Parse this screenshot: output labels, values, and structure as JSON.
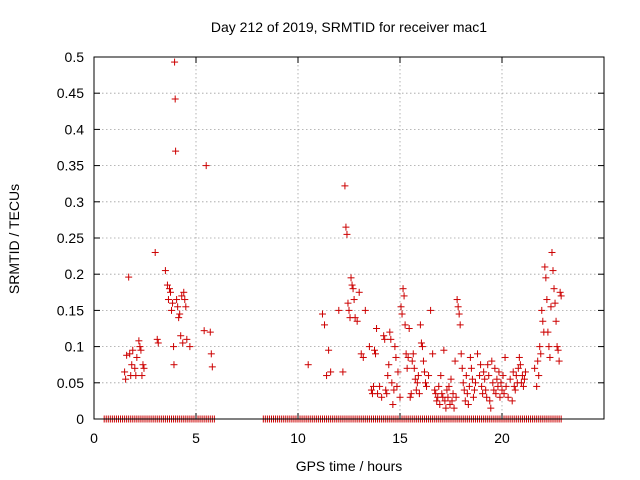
{
  "chart_data": {
    "type": "scatter",
    "title": "Day 212 of 2019, SRMTID for receiver mac1",
    "xlabel": "GPS time / hours",
    "ylabel": "SRMTID / TECUs",
    "xlim": [
      0,
      25
    ],
    "ylim": [
      0,
      0.5
    ],
    "xticks": [
      0,
      5,
      10,
      15,
      20
    ],
    "xtick_labels": [
      "0",
      "5",
      "10",
      "15",
      "20"
    ],
    "yticks": [
      0,
      0.05,
      0.1,
      0.15,
      0.2,
      0.25,
      0.3,
      0.35,
      0.4,
      0.45,
      0.5
    ],
    "ytick_labels": [
      "0",
      "0.05",
      "0.1",
      "0.15",
      "0.2",
      "0.25",
      "0.3",
      "0.35",
      "0.4",
      "0.45",
      "0.5"
    ],
    "grid": true,
    "marker": "+",
    "series": [
      {
        "name": "SRMTID",
        "color": "#cc0000",
        "points": [
          [
            1.5,
            0.065
          ],
          [
            1.55,
            0.055
          ],
          [
            1.6,
            0.088
          ],
          [
            1.7,
            0.196
          ],
          [
            1.75,
            0.09
          ],
          [
            1.8,
            0.06
          ],
          [
            1.85,
            0.075
          ],
          [
            1.9,
            0.095
          ],
          [
            2.0,
            0.07
          ],
          [
            2.05,
            0.06
          ],
          [
            2.1,
            0.085
          ],
          [
            2.2,
            0.108
          ],
          [
            2.25,
            0.1
          ],
          [
            2.3,
            0.095
          ],
          [
            2.35,
            0.06
          ],
          [
            2.4,
            0.075
          ],
          [
            2.45,
            0.07
          ],
          [
            3.0,
            0.23
          ],
          [
            3.1,
            0.11
          ],
          [
            3.15,
            0.105
          ],
          [
            3.5,
            0.205
          ],
          [
            3.6,
            0.185
          ],
          [
            3.65,
            0.165
          ],
          [
            3.7,
            0.18
          ],
          [
            3.75,
            0.175
          ],
          [
            3.8,
            0.15
          ],
          [
            3.85,
            0.16
          ],
          [
            3.9,
            0.1
          ],
          [
            3.92,
            0.075
          ],
          [
            3.95,
            0.493
          ],
          [
            3.98,
            0.442
          ],
          [
            4.0,
            0.37
          ],
          [
            4.05,
            0.165
          ],
          [
            4.1,
            0.155
          ],
          [
            4.15,
            0.14
          ],
          [
            4.2,
            0.145
          ],
          [
            4.25,
            0.115
          ],
          [
            4.3,
            0.17
          ],
          [
            4.35,
            0.105
          ],
          [
            4.4,
            0.175
          ],
          [
            4.45,
            0.165
          ],
          [
            4.5,
            0.155
          ],
          [
            4.55,
            0.11
          ],
          [
            4.7,
            0.1
          ],
          [
            5.4,
            0.122
          ],
          [
            5.5,
            0.35
          ],
          [
            5.7,
            0.12
          ],
          [
            5.75,
            0.09
          ],
          [
            5.8,
            0.072
          ],
          [
            10.5,
            0.075
          ],
          [
            11.2,
            0.145
          ],
          [
            11.3,
            0.13
          ],
          [
            11.4,
            0.06
          ],
          [
            11.5,
            0.095
          ],
          [
            11.6,
            0.065
          ],
          [
            12.0,
            0.15
          ],
          [
            12.2,
            0.065
          ],
          [
            12.3,
            0.322
          ],
          [
            12.35,
            0.265
          ],
          [
            12.4,
            0.255
          ],
          [
            12.45,
            0.16
          ],
          [
            12.5,
            0.15
          ],
          [
            12.55,
            0.14
          ],
          [
            12.6,
            0.195
          ],
          [
            12.65,
            0.185
          ],
          [
            12.7,
            0.18
          ],
          [
            12.75,
            0.165
          ],
          [
            12.8,
            0.14
          ],
          [
            12.9,
            0.135
          ],
          [
            13.0,
            0.175
          ],
          [
            13.1,
            0.09
          ],
          [
            13.2,
            0.085
          ],
          [
            13.3,
            0.15
          ],
          [
            13.5,
            0.1
          ],
          [
            13.6,
            0.04
          ],
          [
            13.65,
            0.035
          ],
          [
            13.7,
            0.045
          ],
          [
            13.75,
            0.095
          ],
          [
            13.8,
            0.09
          ],
          [
            13.85,
            0.125
          ],
          [
            13.9,
            0.035
          ],
          [
            14.0,
            0.045
          ],
          [
            14.1,
            0.03
          ],
          [
            14.2,
            0.115
          ],
          [
            14.25,
            0.11
          ],
          [
            14.3,
            0.04
          ],
          [
            14.35,
            0.035
          ],
          [
            14.4,
            0.06
          ],
          [
            14.45,
            0.075
          ],
          [
            14.5,
            0.12
          ],
          [
            14.55,
            0.11
          ],
          [
            14.6,
            0.05
          ],
          [
            14.65,
            0.02
          ],
          [
            14.7,
            0.04
          ],
          [
            14.75,
            0.1
          ],
          [
            14.8,
            0.085
          ],
          [
            14.85,
            0.045
          ],
          [
            14.9,
            0.065
          ],
          [
            15.0,
            0.03
          ],
          [
            15.05,
            0.155
          ],
          [
            15.1,
            0.145
          ],
          [
            15.15,
            0.18
          ],
          [
            15.2,
            0.17
          ],
          [
            15.25,
            0.13
          ],
          [
            15.3,
            0.09
          ],
          [
            15.35,
            0.07
          ],
          [
            15.4,
            0.085
          ],
          [
            15.45,
            0.125
          ],
          [
            15.5,
            0.03
          ],
          [
            15.55,
            0.035
          ],
          [
            15.6,
            0.08
          ],
          [
            15.65,
            0.09
          ],
          [
            15.7,
            0.07
          ],
          [
            15.75,
            0.055
          ],
          [
            15.8,
            0.04
          ],
          [
            15.85,
            0.05
          ],
          [
            15.9,
            0.06
          ],
          [
            15.95,
            0.035
          ],
          [
            16.0,
            0.13
          ],
          [
            16.05,
            0.105
          ],
          [
            16.1,
            0.1
          ],
          [
            16.15,
            0.08
          ],
          [
            16.2,
            0.065
          ],
          [
            16.25,
            0.05
          ],
          [
            16.3,
            0.045
          ],
          [
            16.4,
            0.06
          ],
          [
            16.5,
            0.15
          ],
          [
            16.6,
            0.09
          ],
          [
            16.7,
            0.04
          ],
          [
            16.75,
            0.035
          ],
          [
            16.8,
            0.025
          ],
          [
            16.85,
            0.03
          ],
          [
            16.9,
            0.045
          ],
          [
            16.95,
            0.02
          ],
          [
            17.0,
            0.06
          ],
          [
            17.05,
            0.035
          ],
          [
            17.1,
            0.03
          ],
          [
            17.15,
            0.095
          ],
          [
            17.2,
            0.025
          ],
          [
            17.25,
            0.015
          ],
          [
            17.3,
            0.04
          ],
          [
            17.35,
            0.03
          ],
          [
            17.4,
            0.045
          ],
          [
            17.45,
            0.02
          ],
          [
            17.5,
            0.055
          ],
          [
            17.55,
            0.025
          ],
          [
            17.6,
            0.035
          ],
          [
            17.65,
            0.015
          ],
          [
            17.7,
            0.08
          ],
          [
            17.75,
            0.03
          ],
          [
            17.8,
            0.165
          ],
          [
            17.85,
            0.155
          ],
          [
            17.9,
            0.145
          ],
          [
            17.95,
            0.13
          ],
          [
            18.0,
            0.09
          ],
          [
            18.05,
            0.07
          ],
          [
            18.1,
            0.05
          ],
          [
            18.15,
            0.04
          ],
          [
            18.2,
            0.025
          ],
          [
            18.25,
            0.06
          ],
          [
            18.3,
            0.035
          ],
          [
            18.35,
            0.02
          ],
          [
            18.4,
            0.045
          ],
          [
            18.45,
            0.085
          ],
          [
            18.5,
            0.07
          ],
          [
            18.55,
            0.055
          ],
          [
            18.6,
            0.03
          ],
          [
            18.65,
            0.04
          ],
          [
            18.7,
            0.05
          ],
          [
            18.8,
            0.09
          ],
          [
            18.9,
            0.06
          ],
          [
            18.95,
            0.075
          ],
          [
            19.0,
            0.045
          ],
          [
            19.05,
            0.035
          ],
          [
            19.1,
            0.065
          ],
          [
            19.15,
            0.055
          ],
          [
            19.2,
            0.04
          ],
          [
            19.25,
            0.03
          ],
          [
            19.3,
            0.075
          ],
          [
            19.35,
            0.06
          ],
          [
            19.4,
            0.025
          ],
          [
            19.45,
            0.015
          ],
          [
            19.5,
            0.08
          ],
          [
            19.55,
            0.05
          ],
          [
            19.6,
            0.04
          ],
          [
            19.65,
            0.07
          ],
          [
            19.7,
            0.035
          ],
          [
            19.75,
            0.055
          ],
          [
            19.8,
            0.045
          ],
          [
            19.85,
            0.065
          ],
          [
            19.9,
            0.03
          ],
          [
            19.95,
            0.05
          ],
          [
            20.0,
            0.04
          ],
          [
            20.05,
            0.06
          ],
          [
            20.1,
            0.035
          ],
          [
            20.15,
            0.085
          ],
          [
            20.2,
            0.045
          ],
          [
            20.3,
            0.03
          ],
          [
            20.4,
            0.055
          ],
          [
            20.5,
            0.025
          ],
          [
            20.55,
            0.065
          ],
          [
            20.6,
            0.045
          ],
          [
            20.65,
            0.04
          ],
          [
            20.7,
            0.06
          ],
          [
            20.75,
            0.05
          ],
          [
            20.8,
            0.07
          ],
          [
            20.85,
            0.085
          ],
          [
            20.9,
            0.075
          ],
          [
            20.95,
            0.05
          ],
          [
            21.0,
            0.06
          ],
          [
            21.05,
            0.045
          ],
          [
            21.1,
            0.055
          ],
          [
            21.15,
            0.065
          ],
          [
            21.6,
            0.07
          ],
          [
            21.7,
            0.045
          ],
          [
            21.75,
            0.08
          ],
          [
            21.8,
            0.06
          ],
          [
            21.85,
            0.1
          ],
          [
            21.9,
            0.09
          ],
          [
            21.95,
            0.15
          ],
          [
            22.0,
            0.135
          ],
          [
            22.05,
            0.12
          ],
          [
            22.1,
            0.21
          ],
          [
            22.15,
            0.195
          ],
          [
            22.2,
            0.165
          ],
          [
            22.25,
            0.12
          ],
          [
            22.3,
            0.1
          ],
          [
            22.35,
            0.085
          ],
          [
            22.4,
            0.155
          ],
          [
            22.45,
            0.23
          ],
          [
            22.5,
            0.205
          ],
          [
            22.55,
            0.18
          ],
          [
            22.6,
            0.16
          ],
          [
            22.65,
            0.135
          ],
          [
            22.7,
            0.1
          ],
          [
            22.75,
            0.095
          ],
          [
            22.8,
            0.08
          ],
          [
            22.85,
            0.175
          ],
          [
            22.9,
            0.17
          ]
        ],
        "zero_runs": [
          [
            0.5,
            5.9
          ],
          [
            8.3,
            22.9
          ]
        ],
        "zero_step": 0.1
      }
    ]
  }
}
